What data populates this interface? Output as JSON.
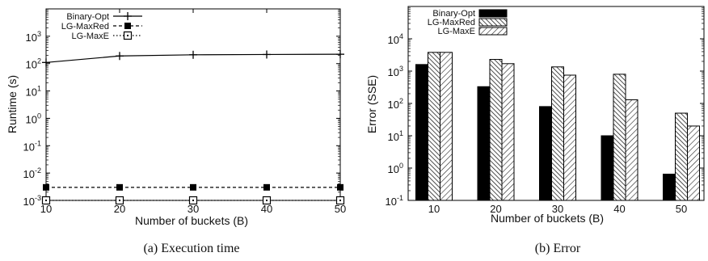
{
  "chart_data": [
    {
      "type": "line",
      "caption": "(a) Execution time",
      "xlabel": "Number of buckets (B)",
      "ylabel": "Runtime (s)",
      "yscale": "log",
      "ylim": [
        0.001,
        10000
      ],
      "x": [
        10,
        20,
        30,
        40,
        50
      ],
      "xticks": [
        "10",
        "20",
        "30",
        "40",
        "50"
      ],
      "yticks": [
        {
          "base": "10",
          "exp": "-3"
        },
        {
          "base": "10",
          "exp": "-2"
        },
        {
          "base": "10",
          "exp": "-1"
        },
        {
          "base": "10",
          "exp": "0"
        },
        {
          "base": "10",
          "exp": "1"
        },
        {
          "base": "10",
          "exp": "2"
        },
        {
          "base": "10",
          "exp": "3"
        }
      ],
      "legend_position": "top-left",
      "series": [
        {
          "name": "Binary-Opt",
          "values": [
            110,
            190,
            210,
            215,
            220
          ]
        },
        {
          "name": "LG-MaxRed",
          "values": [
            0.003,
            0.003,
            0.003,
            0.003,
            0.003
          ]
        },
        {
          "name": "LG-MaxE",
          "values": [
            0.001,
            0.001,
            0.001,
            0.001,
            0.001
          ]
        }
      ]
    },
    {
      "type": "bar",
      "caption": "(b) Error",
      "xlabel": "Number of buckets (B)",
      "ylabel": "Error (SSE)",
      "yscale": "log",
      "ylim": [
        0.1,
        100000
      ],
      "categories": [
        "10",
        "20",
        "30",
        "40",
        "50"
      ],
      "yticks": [
        {
          "base": "10",
          "exp": "-1"
        },
        {
          "base": "10",
          "exp": "0"
        },
        {
          "base": "10",
          "exp": "1"
        },
        {
          "base": "10",
          "exp": "2"
        },
        {
          "base": "10",
          "exp": "3"
        },
        {
          "base": "10",
          "exp": "4"
        }
      ],
      "legend_position": "top-left",
      "series": [
        {
          "name": "Binary-Opt",
          "values": [
            1600,
            330,
            80,
            10,
            0.65
          ]
        },
        {
          "name": "LG-MaxRed",
          "values": [
            3800,
            2300,
            1350,
            800,
            50
          ]
        },
        {
          "name": "LG-MaxE",
          "values": [
            3800,
            1700,
            750,
            130,
            20
          ]
        }
      ]
    }
  ]
}
